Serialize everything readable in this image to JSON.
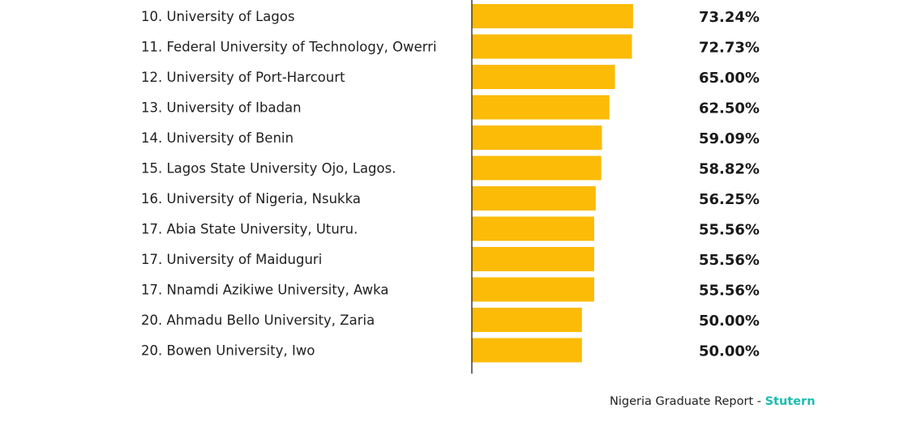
{
  "chart_data": {
    "type": "bar",
    "orientation": "horizontal",
    "categories": [
      "10. University of Lagos",
      "11. Federal University of Technology, Owerri",
      "12. University of Port-Harcourt",
      "13. University of Ibadan",
      "14. University of Benin",
      "15. Lagos State University Ojo, Lagos.",
      "16. University of Nigeria, Nsukka",
      "17. Abia State University, Uturu.",
      "17. University of Maiduguri",
      "17. Nnamdi Azikiwe University, Awka",
      "20. Ahmadu Bello University, Zaria",
      "20. Bowen University, Iwo"
    ],
    "values": [
      73.24,
      72.73,
      65.0,
      62.5,
      59.09,
      58.82,
      56.25,
      55.56,
      55.56,
      55.56,
      50.0,
      50.0
    ],
    "value_labels": [
      "73.24%",
      "72.73%",
      "65.00%",
      "62.50%",
      "59.09%",
      "58.82%",
      "56.25%",
      "55.56%",
      "55.56%",
      "55.56%",
      "50.00%",
      "50.00%"
    ],
    "xlim": [
      0,
      100
    ],
    "grid": false,
    "bar_color": "#fbbb07",
    "axis_color": "#222222"
  },
  "source": {
    "text": "Nigeria Graduate Report - ",
    "brand": "Stutern",
    "brand_color": "#1dbcb0"
  }
}
